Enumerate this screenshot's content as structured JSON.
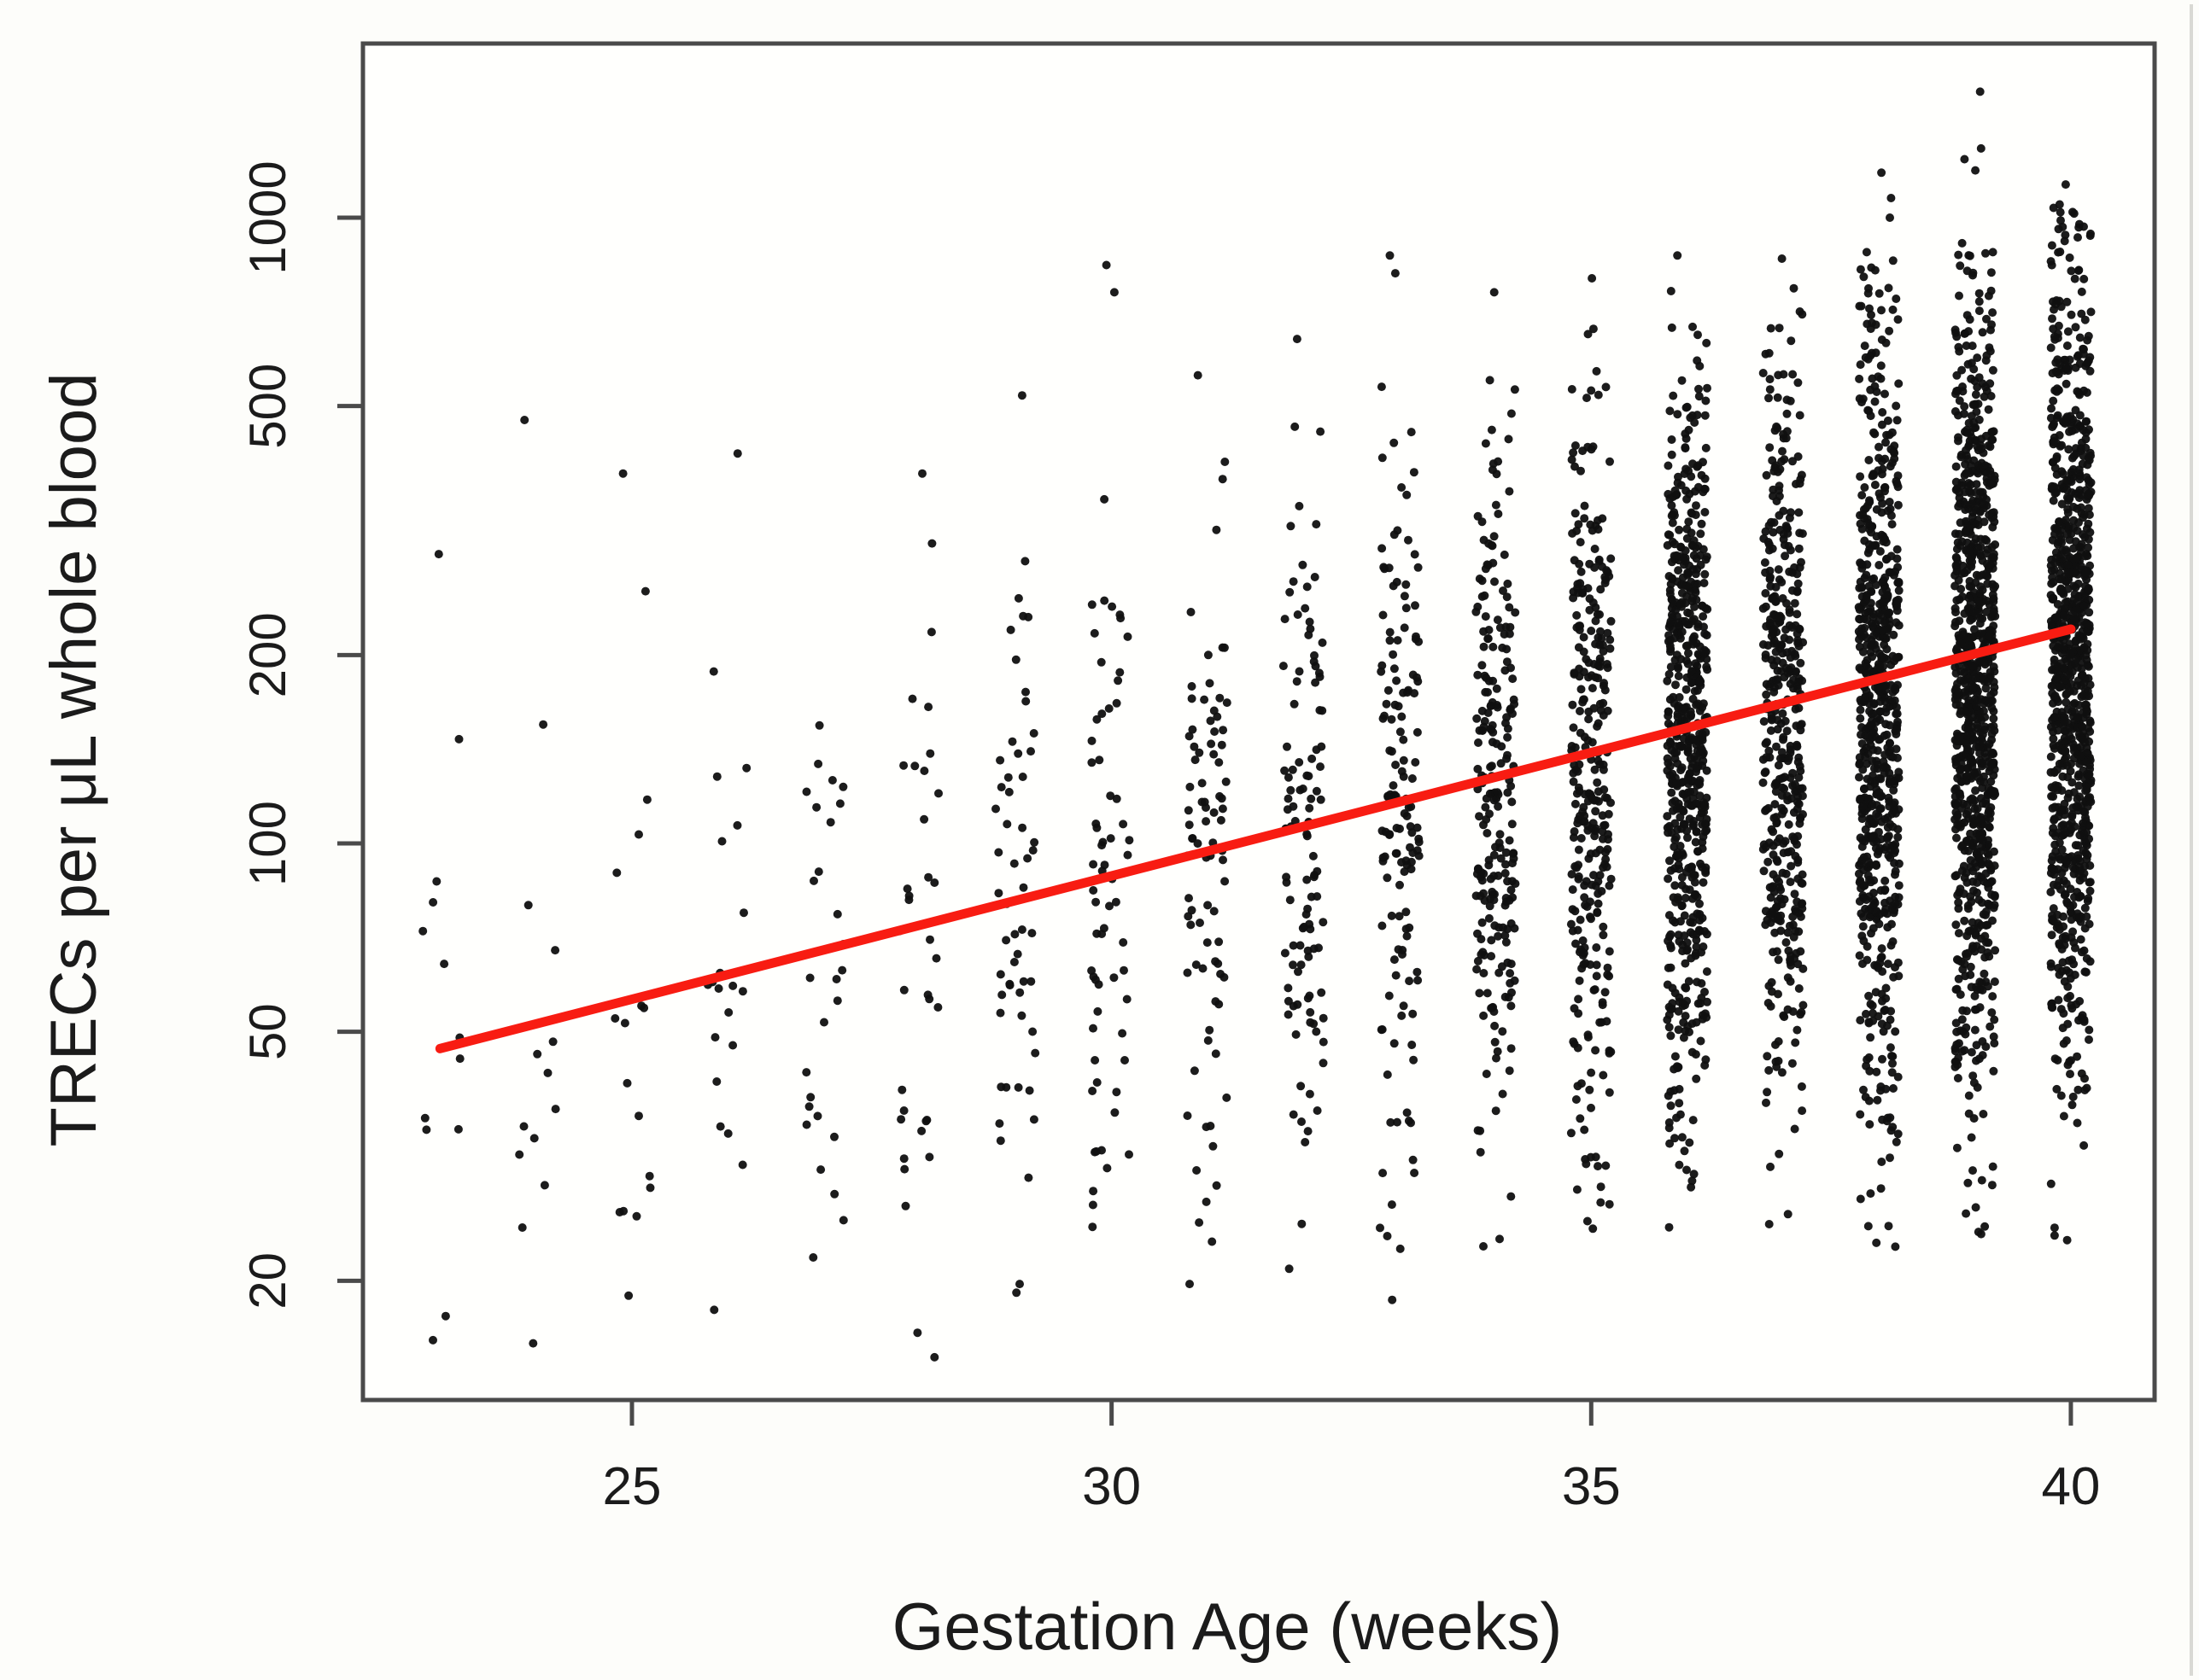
{
  "figure": {
    "background": "#fdfdfa",
    "plot_background": "#fffffd",
    "frame_color": "#4a4a4a",
    "point_color": "#101010",
    "text_color": "#1b1b1b",
    "accent_red": "#f81c12",
    "page_edge_artifact_color": "#d9d9d4"
  },
  "chart_data": {
    "type": "scatter",
    "title": "",
    "xlabel": "Gestation Age (weeks)",
    "ylabel": "TRECs per μL whole blood",
    "x_scale": "linear",
    "y_scale": "log10",
    "xlim": [
      22.2,
      40.9
    ],
    "ylim": [
      13,
      1900
    ],
    "x_ticks": [
      25,
      30,
      35,
      40
    ],
    "x_tick_labels": [
      "25",
      "30",
      "35",
      "40"
    ],
    "y_ticks": [
      20,
      50,
      100,
      200,
      500,
      1000
    ],
    "y_tick_labels": [
      "20",
      "50",
      "100",
      "200",
      "500",
      "1000"
    ],
    "grid": false,
    "legend": null,
    "regression_line": {
      "x1": 23.0,
      "y1": 47,
      "x2": 40.0,
      "y2": 220,
      "color": "#f81c12"
    },
    "jitter_weeks": 0.21,
    "columns": [
      {
        "week": 23,
        "n": 12,
        "median": 48,
        "log10_sd": 0.26,
        "min": 15,
        "max": 300,
        "outliers": [
          290
        ]
      },
      {
        "week": 24,
        "n": 13,
        "median": 50,
        "log10_sd": 0.28,
        "min": 15,
        "max": 300,
        "outliers": [
          475
        ]
      },
      {
        "week": 25,
        "n": 16,
        "median": 52,
        "log10_sd": 0.28,
        "min": 15,
        "max": 320,
        "outliers": [
          390
        ]
      },
      {
        "week": 26,
        "n": 20,
        "median": 58,
        "log10_sd": 0.29,
        "min": 15,
        "max": 350,
        "outliers": [
          420
        ]
      },
      {
        "week": 27,
        "n": 28,
        "median": 62,
        "log10_sd": 0.3,
        "min": 15,
        "max": 400,
        "outliers": []
      },
      {
        "week": 28,
        "n": 34,
        "median": 68,
        "log10_sd": 0.3,
        "min": 15,
        "max": 420,
        "outliers": [
          390
        ]
      },
      {
        "week": 29,
        "n": 55,
        "median": 78,
        "log10_sd": 0.3,
        "min": 15,
        "max": 460,
        "outliers": [
          520
        ]
      },
      {
        "week": 30,
        "n": 65,
        "median": 88,
        "log10_sd": 0.3,
        "min": 18,
        "max": 520,
        "outliers": [
          840,
          760
        ]
      },
      {
        "week": 31,
        "n": 85,
        "median": 95,
        "log10_sd": 0.3,
        "min": 18,
        "max": 540,
        "outliers": [
          560
        ]
      },
      {
        "week": 32,
        "n": 110,
        "median": 102,
        "log10_sd": 0.3,
        "min": 18,
        "max": 560,
        "outliers": [
          640
        ]
      },
      {
        "week": 33,
        "n": 140,
        "median": 112,
        "log10_sd": 0.3,
        "min": 18,
        "max": 640,
        "outliers": [
          870,
          815
        ]
      },
      {
        "week": 34,
        "n": 230,
        "median": 122,
        "log10_sd": 0.3,
        "min": 20,
        "max": 680,
        "outliers": [
          760
        ]
      },
      {
        "week": 35,
        "n": 300,
        "median": 132,
        "log10_sd": 0.31,
        "min": 20,
        "max": 760,
        "outliers": [
          800
        ]
      },
      {
        "week": 36,
        "n": 600,
        "median": 148,
        "log10_sd": 0.31,
        "min": 22,
        "max": 820,
        "outliers": [
          870
        ]
      },
      {
        "week": 37,
        "n": 430,
        "median": 158,
        "log10_sd": 0.32,
        "min": 22,
        "max": 840,
        "outliers": [
          860
        ]
      },
      {
        "week": 38,
        "n": 680,
        "median": 168,
        "log10_sd": 0.32,
        "min": 22,
        "max": 900,
        "outliers": [
          1180,
          1075,
          1000
        ]
      },
      {
        "week": 39,
        "n": 880,
        "median": 182,
        "log10_sd": 0.33,
        "min": 22,
        "max": 1000,
        "outliers": [
          1590,
          1290,
          1240,
          1190
        ]
      },
      {
        "week": 40,
        "n": 920,
        "median": 198,
        "log10_sd": 0.33,
        "min": 22,
        "max": 1050,
        "outliers": [
          1130,
          1050,
          930
        ]
      }
    ]
  }
}
